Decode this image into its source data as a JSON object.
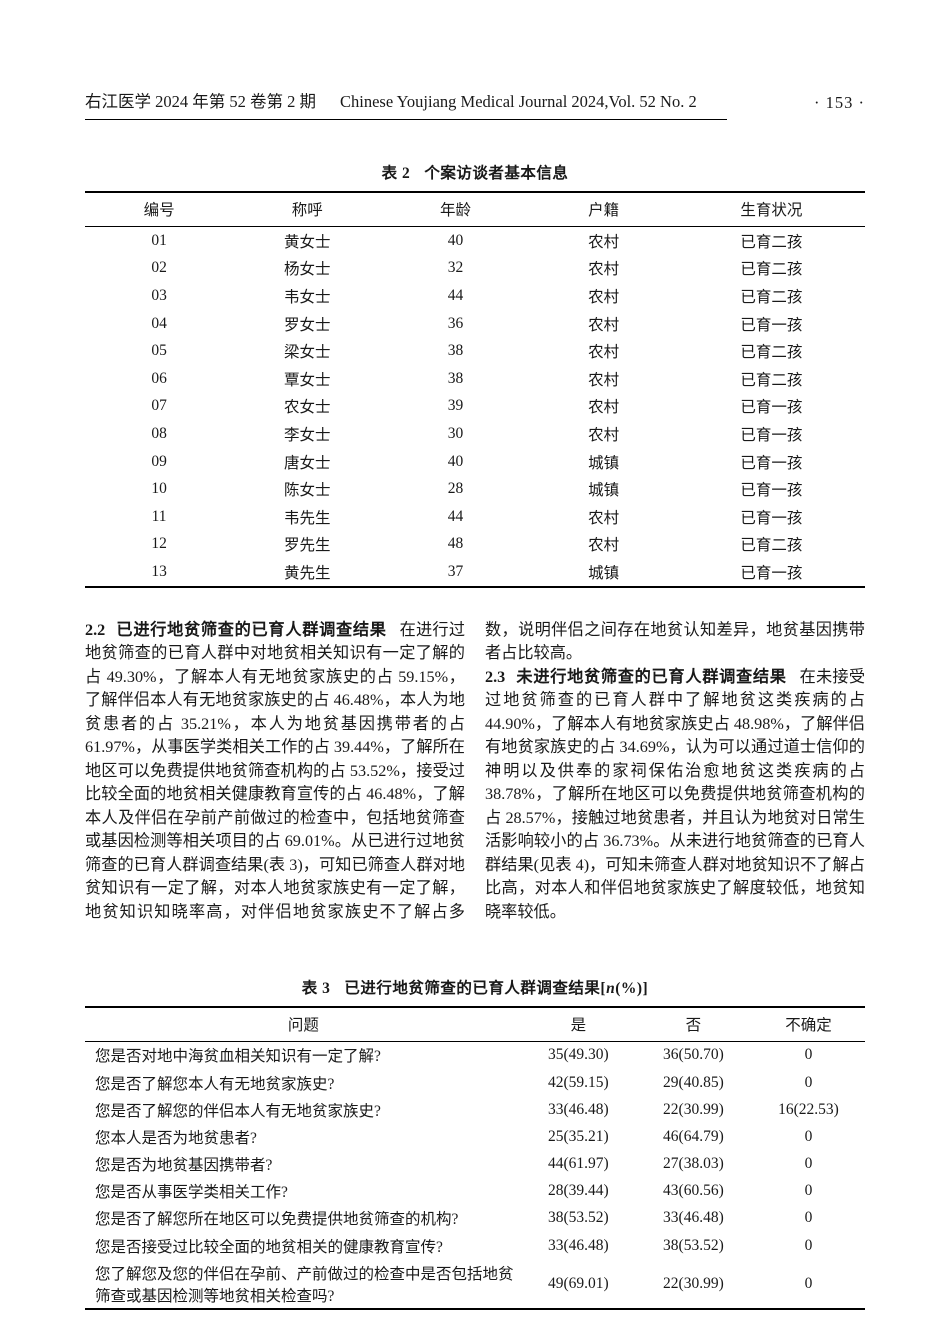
{
  "header": {
    "journal_cn": "右江医学 2024 年第 52 卷第 2 期",
    "journal_en": "Chinese Youjiang Medical Journal 2024,Vol. 52 No. 2",
    "page_number": "· 153 ·"
  },
  "table2": {
    "caption_label": "表 2",
    "caption_title": "个案访谈者基本信息",
    "columns": [
      "编号",
      "称呼",
      "年龄",
      "户籍",
      "生育状况"
    ],
    "rows": [
      [
        "01",
        "黄女士",
        "40",
        "农村",
        "已育二孩"
      ],
      [
        "02",
        "杨女士",
        "32",
        "农村",
        "已育二孩"
      ],
      [
        "03",
        "韦女士",
        "44",
        "农村",
        "已育二孩"
      ],
      [
        "04",
        "罗女士",
        "36",
        "农村",
        "已育一孩"
      ],
      [
        "05",
        "梁女士",
        "38",
        "农村",
        "已育二孩"
      ],
      [
        "06",
        "覃女士",
        "38",
        "农村",
        "已育二孩"
      ],
      [
        "07",
        "农女士",
        "39",
        "农村",
        "已育一孩"
      ],
      [
        "08",
        "李女士",
        "30",
        "农村",
        "已育一孩"
      ],
      [
        "09",
        "唐女士",
        "40",
        "城镇",
        "已育一孩"
      ],
      [
        "10",
        "陈女士",
        "28",
        "城镇",
        "已育一孩"
      ],
      [
        "11",
        "韦先生",
        "44",
        "农村",
        "已育一孩"
      ],
      [
        "12",
        "罗先生",
        "48",
        "农村",
        "已育二孩"
      ],
      [
        "13",
        "黄先生",
        "37",
        "城镇",
        "已育一孩"
      ]
    ]
  },
  "sections": [
    {
      "label": "2.2",
      "heading": "已进行地贫筛查的已育人群调查结果",
      "body": "在进行过地贫筛查的已育人群中对地贫相关知识有一定了解的占 49.30%，了解本人有无地贫家族史的占 59.15%，了解伴侣本人有无地贫家族史的占 46.48%，本人为地贫患者的占 35.21%，本人为地贫基因携带者的占 61.97%，从事医学类相关工作的占 39.44%，了解所在地区可以免费提供地贫筛查机构的占 53.52%，接受过比较全面的地贫相关健康教育宣传的占 46.48%，了解本人及伴侣在孕前产前做过的检查中，包括地贫筛查或基因检测等相关项目的占 69.01%。从已进行过地贫筛查的已育人群调查结果(表 3)，可知已筛查人群对地贫知识有一定了解，对本人地贫家族史有一定了解，地贫知识知晓率高，对伴侣地贫家族史不了解占多数，说明伴侣之间存在地贫认知差异，地贫基因携带者占比较高。"
    },
    {
      "label": "2.3",
      "heading": "未进行地贫筛查的已育人群调查结果",
      "body": "在未接受过地贫筛查的已育人群中了解地贫这类疾病的占 44.90%，了解本人有地贫家族史占 48.98%，了解伴侣有地贫家族史的占 34.69%，认为可以通过道士信仰的神明以及供奉的家祠保佑治愈地贫这类疾病的占 38.78%，了解所在地区可以免费提供地贫筛查机构的占 28.57%，接触过地贫患者，并且认为地贫对日常生活影响较小的占 36.73%。从未进行地贫筛查的已育人群结果(见表 4)，可知未筛查人群对地贫知识不了解占比高，对本人和伴侣地贫家族史了解度较低，地贫知晓率较低。"
    }
  ],
  "table3": {
    "caption_label": "表 3",
    "caption_title": "已进行地贫筛查的已育人群调查结果",
    "caption_bracket_open": "[",
    "caption_n": "n",
    "caption_bracket_close": "(%)]",
    "columns": [
      "问题",
      "是",
      "否",
      "不确定"
    ],
    "rows": [
      [
        "您是否对地中海贫血相关知识有一定了解?",
        "35(49.30)",
        "36(50.70)",
        "0"
      ],
      [
        "您是否了解您本人有无地贫家族史?",
        "42(59.15)",
        "29(40.85)",
        "0"
      ],
      [
        "您是否了解您的伴侣本人有无地贫家族史?",
        "33(46.48)",
        "22(30.99)",
        "16(22.53)"
      ],
      [
        "您本人是否为地贫患者?",
        "25(35.21)",
        "46(64.79)",
        "0"
      ],
      [
        "您是否为地贫基因携带者?",
        "44(61.97)",
        "27(38.03)",
        "0"
      ],
      [
        "您是否从事医学类相关工作?",
        "28(39.44)",
        "43(60.56)",
        "0"
      ],
      [
        "您是否了解您所在地区可以免费提供地贫筛查的机构?",
        "38(53.52)",
        "33(46.48)",
        "0"
      ],
      [
        "您是否接受过比较全面的地贫相关的健康教育宣传?",
        "33(46.48)",
        "38(53.52)",
        "0"
      ],
      [
        "您了解您及您的伴侣在孕前、产前做过的检查中是否包括地贫筛查或基因检测等地贫相关检查吗?",
        "49(69.01)",
        "22(30.99)",
        "0"
      ]
    ]
  }
}
